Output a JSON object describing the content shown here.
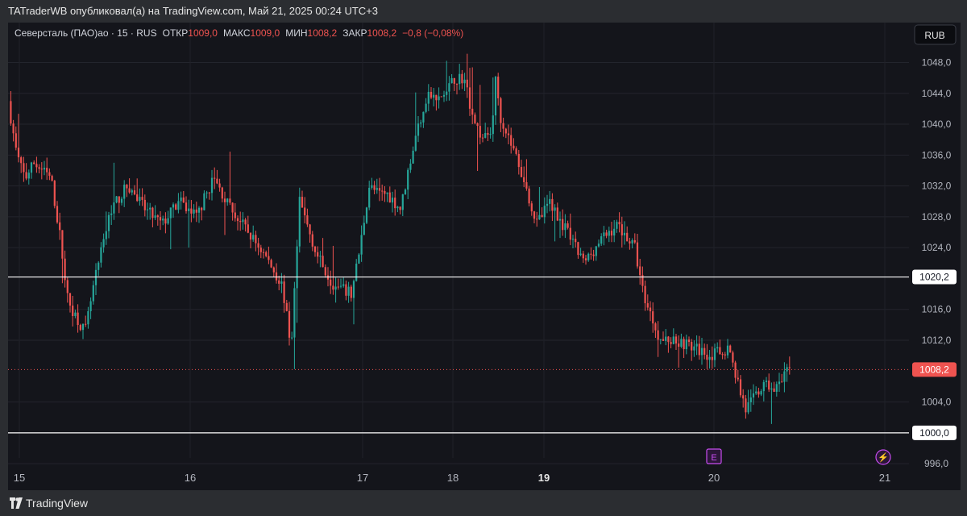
{
  "header": {
    "publisher_line": "TATraderWB опубликовал(а) на TradingView.com, Май 21, 2025 00:24 UTC+3"
  },
  "footer": {
    "brand": "TradingView"
  },
  "chart_data": {
    "type": "candlestick",
    "symbol_line": {
      "name": "Северсталь (ПАО)ао · 15 · RUS",
      "open_label": "ОТКР",
      "open": "1009,0",
      "high_label": "МАКС",
      "high": "1009,0",
      "low_label": "МИН",
      "low": "1008,2",
      "close_label": "ЗАКР",
      "close": "1008,2",
      "change": "−0,8 (−0,08%)"
    },
    "currency": "RUB",
    "y_range": [
      994.6,
      1051.0
    ],
    "y_ticks": [
      "1048,0",
      "1044,0",
      "1040,0",
      "1036,0",
      "1032,0",
      "1028,0",
      "1024,0",
      "1016,0",
      "1012,0",
      "1004,0",
      "996,0"
    ],
    "x_ticks": [
      {
        "label": "15",
        "bold": false
      },
      {
        "label": "16",
        "bold": false
      },
      {
        "label": "17",
        "bold": false
      },
      {
        "label": "18",
        "bold": false
      },
      {
        "label": "19",
        "bold": true
      },
      {
        "label": "20",
        "bold": false
      },
      {
        "label": "21",
        "bold": false
      }
    ],
    "horizontal_levels": [
      {
        "value": 1020.2,
        "label": "1020,2"
      },
      {
        "value": 1000.0,
        "label": "1000,0"
      }
    ],
    "last_price": {
      "value": 1008.2,
      "label": "1008,2"
    },
    "event_markers": [
      {
        "symbol": "E",
        "day": "20"
      },
      {
        "symbol": "⚡",
        "day": "21"
      }
    ],
    "up_color": "#26a69a",
    "down_color": "#ef5350",
    "price_path": [
      [
        14.95,
        1043
      ],
      [
        15.0,
        1036
      ],
      [
        15.05,
        1033
      ],
      [
        15.1,
        1035
      ],
      [
        15.2,
        1033
      ],
      [
        15.25,
        1026
      ],
      [
        15.3,
        1017
      ],
      [
        15.4,
        1013
      ],
      [
        15.45,
        1019
      ],
      [
        15.55,
        1029
      ],
      [
        15.65,
        1032
      ],
      [
        15.75,
        1029
      ],
      [
        15.85,
        1027
      ],
      [
        15.95,
        1030
      ],
      [
        16.0,
        1029
      ],
      [
        16.05,
        1028
      ],
      [
        16.15,
        1033
      ],
      [
        16.25,
        1029
      ],
      [
        16.35,
        1026
      ],
      [
        16.45,
        1023
      ],
      [
        16.55,
        1019
      ],
      [
        16.6,
        1011
      ],
      [
        16.65,
        1030
      ],
      [
        16.75,
        1023
      ],
      [
        16.85,
        1019
      ],
      [
        16.95,
        1018
      ],
      [
        17.0,
        1024
      ],
      [
        17.1,
        1032
      ],
      [
        17.2,
        1031
      ],
      [
        17.3,
        1031
      ],
      [
        17.45,
        1029
      ],
      [
        17.55,
        1035
      ],
      [
        17.65,
        1040
      ],
      [
        17.75,
        1044
      ],
      [
        17.85,
        1043
      ],
      [
        17.95,
        1044
      ],
      [
        18.05,
        1046
      ],
      [
        18.15,
        1046
      ],
      [
        18.25,
        1041
      ],
      [
        18.35,
        1038
      ],
      [
        18.45,
        1039
      ],
      [
        18.5,
        1046
      ],
      [
        18.55,
        1041
      ],
      [
        18.65,
        1038
      ],
      [
        18.75,
        1035
      ],
      [
        18.85,
        1031
      ],
      [
        18.95,
        1027
      ],
      [
        19.05,
        1030
      ],
      [
        19.15,
        1026
      ],
      [
        19.25,
        1022
      ],
      [
        19.35,
        1025
      ],
      [
        19.45,
        1027
      ],
      [
        19.55,
        1024
      ],
      [
        19.6,
        1018
      ],
      [
        19.7,
        1012
      ],
      [
        19.8,
        1012
      ],
      [
        19.9,
        1011
      ],
      [
        20.0,
        1010
      ],
      [
        20.1,
        1011
      ],
      [
        20.15,
        1007
      ],
      [
        20.2,
        1003
      ],
      [
        20.3,
        1006
      ],
      [
        20.4,
        1006
      ],
      [
        20.45,
        1008.2
      ]
    ]
  }
}
